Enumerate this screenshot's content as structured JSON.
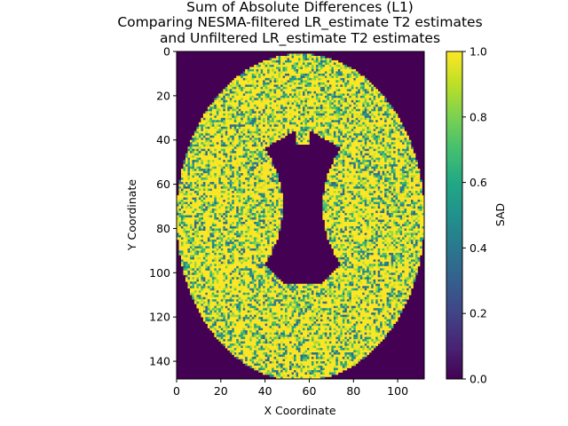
{
  "chart_data": {
    "type": "heatmap",
    "title_lines": [
      "Sum of Absolute Differences (L1)",
      "Comparing NESMA-filtered LR_estimate T2 estimates",
      "and Unfiltered LR_estimate T2 estimates"
    ],
    "xlabel": "X Coordinate",
    "ylabel": "Y Coordinate",
    "xlim": [
      0,
      112
    ],
    "ylim": [
      148,
      0
    ],
    "xticks": [
      0,
      20,
      40,
      60,
      80,
      100
    ],
    "yticks": [
      0,
      20,
      40,
      60,
      80,
      100,
      120,
      140
    ],
    "colorbar": {
      "label": "SAD",
      "range": [
        0.0,
        1.0
      ],
      "ticks": [
        "0.0",
        "0.2",
        "0.4",
        "0.6",
        "0.8",
        "1.0"
      ],
      "colormap": "viridis"
    },
    "regions": [
      {
        "name": "background",
        "value": 0.0
      },
      {
        "name": "brain tissue",
        "value_range": [
          0.3,
          1.0
        ],
        "dominant_value": 1.0
      },
      {
        "name": "ventricles",
        "value": 0.0
      }
    ]
  },
  "colors": {
    "viridis_low": "#440154",
    "viridis_mid": "#21918c",
    "viridis_high": "#fde725"
  }
}
